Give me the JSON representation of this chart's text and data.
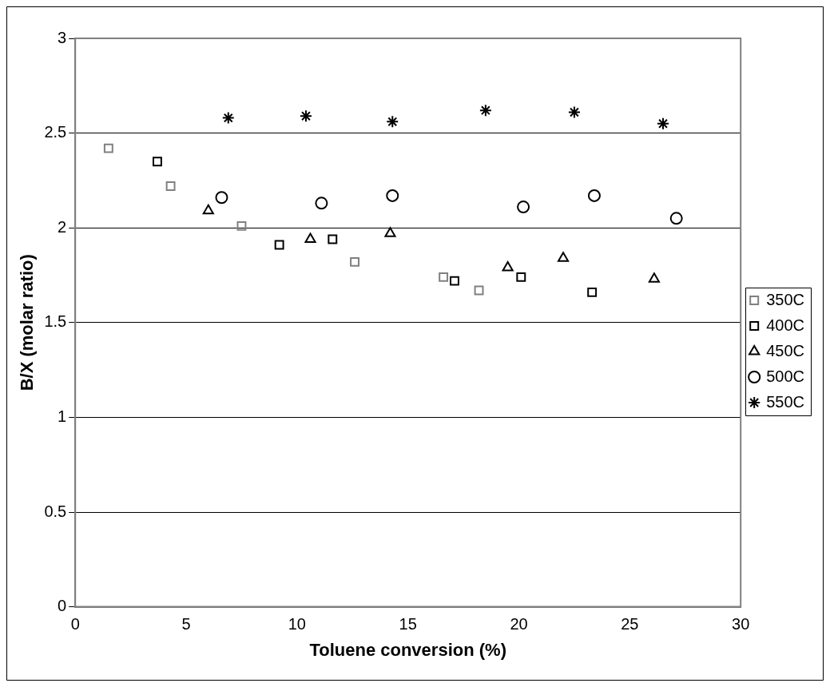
{
  "chart_data": {
    "type": "scatter",
    "xlabel": "Toluene conversion (%)",
    "ylabel": "B/X (molar ratio)",
    "xlim": [
      0,
      30
    ],
    "xticks": [
      0,
      5,
      10,
      15,
      20,
      25,
      30
    ],
    "ylim": [
      0,
      3
    ],
    "yticks": [
      0,
      0.5,
      1,
      1.5,
      2,
      2.5,
      3
    ],
    "grid": "y",
    "legend": "right",
    "series": [
      {
        "name": "350C",
        "color": "#808080",
        "marker": "square",
        "x": [
          1.5,
          4.3,
          7.5,
          12.6,
          16.6,
          18.2
        ],
        "values": [
          2.42,
          2.22,
          2.01,
          1.82,
          1.74,
          1.67
        ]
      },
      {
        "name": "400C",
        "color": "#000000",
        "marker": "square",
        "x": [
          3.7,
          9.2,
          11.6,
          17.1,
          20.1,
          23.3
        ],
        "values": [
          2.35,
          1.91,
          1.94,
          1.72,
          1.74,
          1.66
        ]
      },
      {
        "name": "450C",
        "color": "#000000",
        "marker": "triangle",
        "x": [
          6.0,
          10.6,
          14.2,
          19.5,
          22.0,
          26.1
        ],
        "values": [
          2.09,
          1.94,
          1.97,
          1.79,
          1.84,
          1.73
        ]
      },
      {
        "name": "500C",
        "color": "#000000",
        "marker": "circle",
        "x": [
          6.6,
          11.1,
          14.3,
          20.2,
          23.4,
          27.1
        ],
        "values": [
          2.16,
          2.13,
          2.17,
          2.11,
          2.17,
          2.05
        ]
      },
      {
        "name": "550C",
        "color": "#000000",
        "marker": "cross",
        "x": [
          6.9,
          10.4,
          14.3,
          18.5,
          22.5,
          26.5
        ],
        "values": [
          2.58,
          2.59,
          2.56,
          2.62,
          2.61,
          2.55
        ]
      }
    ]
  }
}
